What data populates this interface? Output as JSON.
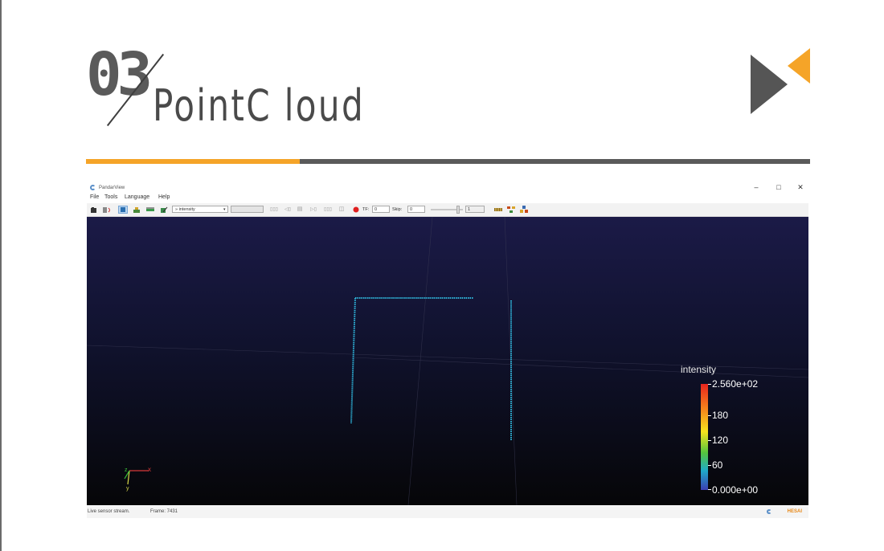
{
  "slide": {
    "number": "03",
    "title": "PointC loud"
  },
  "colors": {
    "accent": "#f5a428",
    "dark_gray": "#5a5a5a",
    "viewport_top": "#1b1a47",
    "point_cloud": "#2fb6dc"
  },
  "app": {
    "title": "PandarView",
    "window_buttons": [
      "–",
      "□",
      "✕"
    ],
    "menu": [
      "File",
      "Tools",
      "Language",
      "Help"
    ],
    "toolbar": {
      "color_field_select": "» intensity",
      "second_select": "",
      "tf_label": "TF:",
      "tf_value": "0",
      "skip_label": "Skip:",
      "skip_value": "0",
      "frame_step_value": "1"
    },
    "legend": {
      "title": "intensity",
      "max_label": "2.560e+02",
      "label_180": "180",
      "label_120": "120",
      "label_60": "60",
      "min_label": "0.000e+00"
    },
    "axes_labels": {
      "x": "x",
      "y": "y",
      "z": "z"
    },
    "status": {
      "message": "Live sensor stream.",
      "frame": "Frame: 7431",
      "brand": "HESAI"
    }
  }
}
